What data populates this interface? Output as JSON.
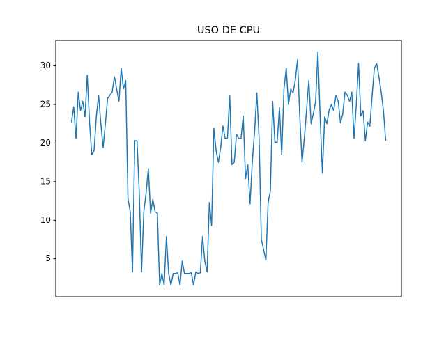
{
  "chart_data": {
    "type": "line",
    "title": "USO DE CPU",
    "series": [
      {
        "color": "#1f77b4",
        "values": [
          22.7,
          24.7,
          20.6,
          26.6,
          24.2,
          25.4,
          23.4,
          28.8,
          22.7,
          18.5,
          19,
          23.4,
          26.2,
          22.5,
          19.4,
          22.5,
          25.8,
          26.2,
          26.6,
          28.6,
          27,
          25.4,
          29.7,
          27,
          28.1,
          12.8,
          11.1,
          3.3,
          20.3,
          20.3,
          13.5,
          3.3,
          11.1,
          13.5,
          16.7,
          10.9,
          12.7,
          11.1,
          10.9,
          1.6,
          3.1,
          1.6,
          7.9,
          3.1,
          1.6,
          3.1,
          3.1,
          3.2,
          1.6,
          4.7,
          3.1,
          3.1,
          3.1,
          3.2,
          1.6,
          3.3,
          3.1,
          3.2,
          7.9,
          4.7,
          3.3,
          12.3,
          9.3,
          21.9,
          19,
          17.5,
          19.4,
          22.2,
          20.6,
          20.6,
          26.2,
          17.2,
          17.5,
          21.1,
          20.6,
          20.6,
          23.5,
          15.4,
          17.2,
          12.1,
          17.6,
          21.5,
          26.5,
          20.6,
          7.5,
          6.2,
          4.8,
          12.3,
          13.8,
          25.4,
          20.1,
          20.1,
          24.6,
          18.5,
          27,
          29.7,
          25,
          27,
          26.5,
          28.1,
          30.8,
          23.4,
          17.5,
          20.6,
          24.3,
          28.1,
          22.5,
          23.8,
          25.4,
          31.8,
          23.4,
          16.1,
          23.4,
          22.5,
          24.3,
          25,
          24.2,
          26.2,
          25.4,
          22.6,
          23.8,
          26.6,
          26.2,
          25.4,
          26.6,
          20.6,
          25,
          30.3,
          23.5,
          24.2,
          20.3,
          22.7,
          22.2,
          26.2,
          29.7,
          30.3,
          28.6,
          26.6,
          24.2,
          20.3
        ]
      }
    ],
    "ylim": [
      0.1,
      33.3
    ],
    "yticks": [
      5,
      10,
      15,
      20,
      25,
      30
    ]
  }
}
